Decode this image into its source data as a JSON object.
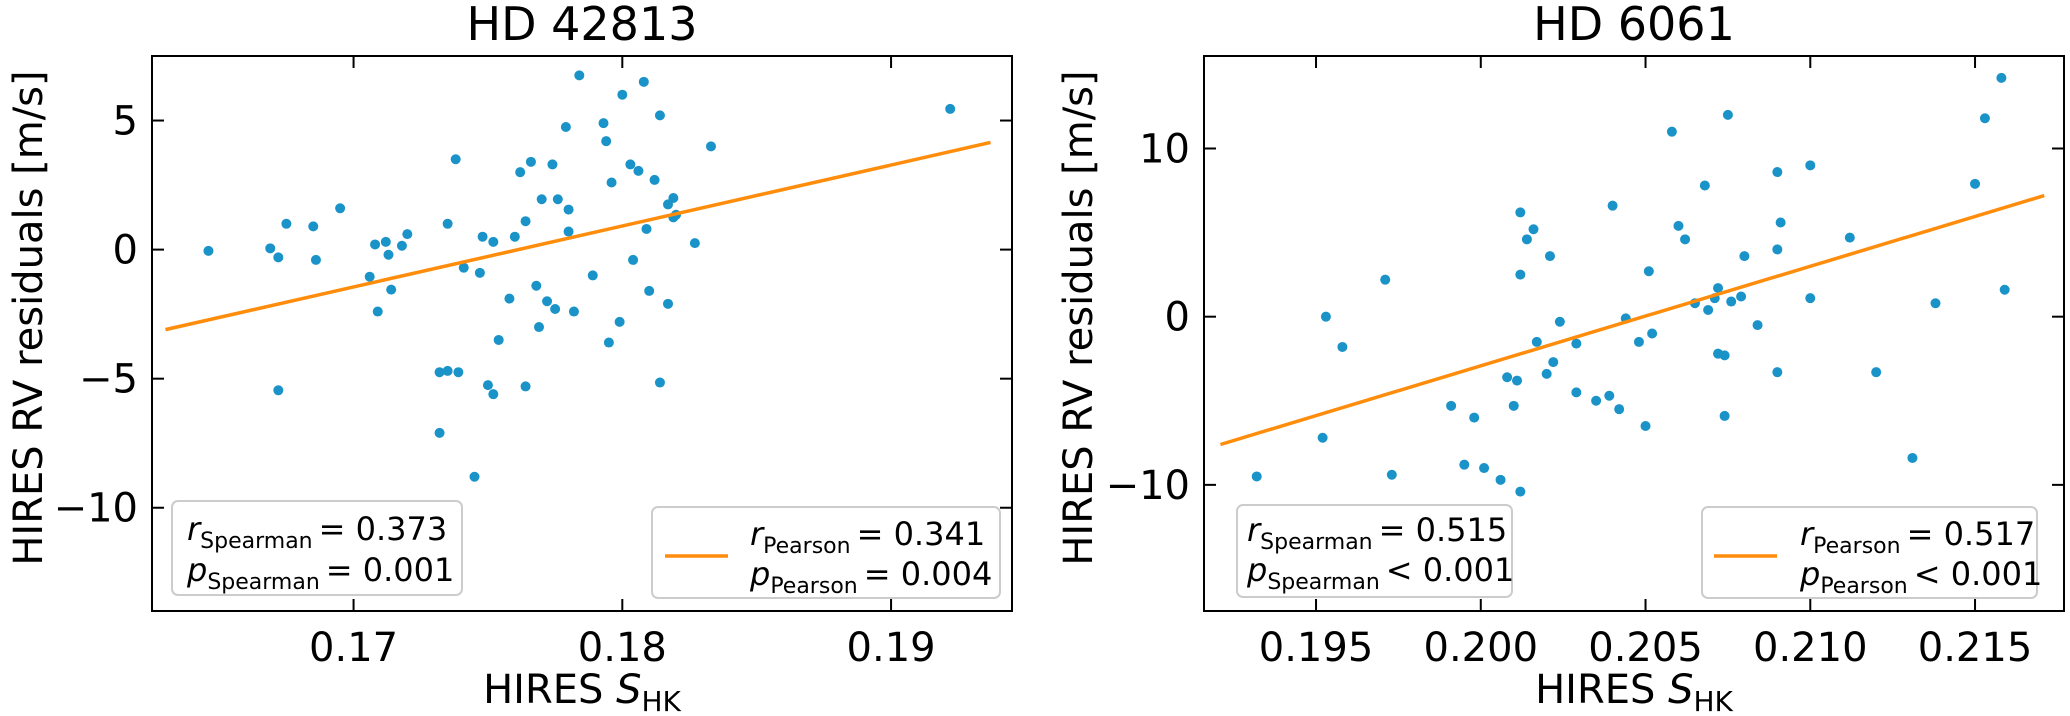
{
  "colors": {
    "points": "#1a93c8",
    "fit": "#ff8c0a"
  },
  "chart_data": [
    {
      "type": "scatter",
      "title": "HD 42813",
      "xlabel": "HIRES S_HK",
      "xlabel_main": "HIRES ",
      "xlabel_var": "S",
      "xlabel_sub": "HK",
      "ylabel": "HIRES RV residuals [m/s]",
      "xlim": [
        0.1625,
        0.1945
      ],
      "ylim": [
        -14,
        7.5
      ],
      "xticks": [
        0.17,
        0.18,
        0.19
      ],
      "xtick_labels": [
        "0.17",
        "0.18",
        "0.19"
      ],
      "yticks": [
        -10,
        -5,
        0,
        5
      ],
      "ytick_labels": [
        "−10",
        "−5",
        "0",
        "5"
      ],
      "fit_line": {
        "x": [
          0.163,
          0.1937
        ],
        "y": [
          -3.1,
          4.15
        ]
      },
      "legend": {
        "spearman": {
          "r_sym": "r",
          "r_sub": "Spearman",
          "r_val": "= 0.373",
          "p_sym": "p",
          "p_sub": "Spearman",
          "p_val": "= 0.001"
        },
        "pearson": {
          "r_sym": "r",
          "r_sub": "Pearson",
          "r_val": "=  0.341",
          "p_sym": "p",
          "p_sub": "Pearson",
          "p_val": "= 0.004"
        }
      },
      "points": [
        [
          0.1646,
          -0.05
        ],
        [
          0.1669,
          0.05
        ],
        [
          0.1672,
          -0.3
        ],
        [
          0.1675,
          1.0
        ],
        [
          0.1672,
          -5.45
        ],
        [
          0.1685,
          0.9
        ],
        [
          0.1686,
          -0.4
        ],
        [
          0.1695,
          1.6
        ],
        [
          0.1706,
          -1.05
        ],
        [
          0.1708,
          0.2
        ],
        [
          0.1709,
          -2.4
        ],
        [
          0.1712,
          0.3
        ],
        [
          0.1713,
          -0.2
        ],
        [
          0.1714,
          -1.55
        ],
        [
          0.1718,
          0.15
        ],
        [
          0.172,
          0.6
        ],
        [
          0.1732,
          -4.75
        ],
        [
          0.1732,
          -7.1
        ],
        [
          0.1735,
          -4.7
        ],
        [
          0.1735,
          1.0
        ],
        [
          0.1738,
          3.5
        ],
        [
          0.1739,
          -4.75
        ],
        [
          0.1741,
          -0.7
        ],
        [
          0.1745,
          -8.8
        ],
        [
          0.1747,
          -0.9
        ],
        [
          0.1748,
          0.5
        ],
        [
          0.175,
          -5.25
        ],
        [
          0.1752,
          -5.6
        ],
        [
          0.1752,
          0.3
        ],
        [
          0.1754,
          -3.5
        ],
        [
          0.1758,
          -1.9
        ],
        [
          0.176,
          0.5
        ],
        [
          0.1762,
          3.0
        ],
        [
          0.1764,
          1.1
        ],
        [
          0.1764,
          -5.3
        ],
        [
          0.1766,
          3.4
        ],
        [
          0.1768,
          -1.4
        ],
        [
          0.1769,
          -3.0
        ],
        [
          0.177,
          1.95
        ],
        [
          0.1772,
          -2.0
        ],
        [
          0.1774,
          3.3
        ],
        [
          0.1775,
          -2.3
        ],
        [
          0.1776,
          1.95
        ],
        [
          0.1779,
          4.75
        ],
        [
          0.178,
          1.55
        ],
        [
          0.178,
          0.7
        ],
        [
          0.1782,
          -2.4
        ],
        [
          0.1784,
          6.75
        ],
        [
          0.1789,
          -1.0
        ],
        [
          0.1793,
          4.9
        ],
        [
          0.1794,
          4.2
        ],
        [
          0.1795,
          -3.6
        ],
        [
          0.1796,
          2.6
        ],
        [
          0.1799,
          -2.8
        ],
        [
          0.18,
          6.0
        ],
        [
          0.1803,
          3.3
        ],
        [
          0.1804,
          -0.4
        ],
        [
          0.1806,
          3.05
        ],
        [
          0.1808,
          6.5
        ],
        [
          0.1809,
          0.8
        ],
        [
          0.181,
          -1.6
        ],
        [
          0.1812,
          2.7
        ],
        [
          0.1814,
          5.2
        ],
        [
          0.1814,
          -5.15
        ],
        [
          0.1817,
          1.75
        ],
        [
          0.1817,
          -2.1
        ],
        [
          0.1819,
          2.0
        ],
        [
          0.1819,
          1.25
        ],
        [
          0.182,
          1.35
        ],
        [
          0.1827,
          0.25
        ],
        [
          0.1833,
          4.0
        ],
        [
          0.1922,
          5.45
        ]
      ]
    },
    {
      "type": "scatter",
      "title": "HD 6061",
      "xlabel": "HIRES S_HK",
      "xlabel_main": "HIRES ",
      "xlabel_var": "S",
      "xlabel_sub": "HK",
      "ylabel": "HIRES RV residuals [m/s]",
      "xlim": [
        0.1916,
        0.2177
      ],
      "ylim": [
        -17.5,
        15.5
      ],
      "xticks": [
        0.195,
        0.2,
        0.205,
        0.21,
        0.215
      ],
      "xtick_labels": [
        "0.195",
        "0.200",
        "0.205",
        "0.210",
        "0.215"
      ],
      "yticks": [
        -10,
        0,
        10
      ],
      "ytick_labels": [
        "−10",
        "0",
        "10"
      ],
      "fit_line": {
        "x": [
          0.1921,
          0.2171
        ],
        "y": [
          -7.6,
          7.2
        ]
      },
      "legend": {
        "spearman": {
          "r_sym": "r",
          "r_sub": "Spearman",
          "r_val": "= 0.515",
          "p_sym": "p",
          "p_sub": "Spearman",
          "p_val": "< 0.001"
        },
        "pearson": {
          "r_sym": "r",
          "r_sub": "Pearson",
          "r_val": "=  0.517",
          "p_sym": "p",
          "p_sub": "Pearson",
          "p_val": "< 0.001"
        }
      },
      "points": [
        [
          0.1932,
          -9.5
        ],
        [
          0.1952,
          -7.2
        ],
        [
          0.1953,
          0.0
        ],
        [
          0.1958,
          -1.8
        ],
        [
          0.1971,
          2.2
        ],
        [
          0.1973,
          -9.4
        ],
        [
          0.1991,
          -5.3
        ],
        [
          0.1995,
          -8.8
        ],
        [
          0.1998,
          -6.0
        ],
        [
          0.2001,
          -9.0
        ],
        [
          0.2006,
          -9.7
        ],
        [
          0.2008,
          -3.6
        ],
        [
          0.201,
          -5.3
        ],
        [
          0.2011,
          -3.8
        ],
        [
          0.2012,
          2.5
        ],
        [
          0.2012,
          6.2
        ],
        [
          0.2012,
          -10.4
        ],
        [
          0.2014,
          4.6
        ],
        [
          0.2016,
          5.2
        ],
        [
          0.2017,
          -1.5
        ],
        [
          0.202,
          -3.4
        ],
        [
          0.2021,
          3.6
        ],
        [
          0.2022,
          -2.7
        ],
        [
          0.2024,
          -0.3
        ],
        [
          0.2029,
          -1.6
        ],
        [
          0.2029,
          -4.5
        ],
        [
          0.2035,
          -5.0
        ],
        [
          0.2039,
          -4.7
        ],
        [
          0.204,
          6.6
        ],
        [
          0.2042,
          -5.5
        ],
        [
          0.2044,
          -0.1
        ],
        [
          0.2048,
          -1.5
        ],
        [
          0.205,
          -6.5
        ],
        [
          0.2051,
          2.7
        ],
        [
          0.2052,
          -1.0
        ],
        [
          0.2058,
          11.0
        ],
        [
          0.206,
          5.4
        ],
        [
          0.2062,
          4.6
        ],
        [
          0.2065,
          0.8
        ],
        [
          0.2068,
          7.8
        ],
        [
          0.2069,
          0.4
        ],
        [
          0.2071,
          1.1
        ],
        [
          0.2072,
          1.7
        ],
        [
          0.2072,
          -2.2
        ],
        [
          0.2074,
          -2.3
        ],
        [
          0.2074,
          -5.9
        ],
        [
          0.2075,
          12.0
        ],
        [
          0.2076,
          0.9
        ],
        [
          0.2079,
          1.2
        ],
        [
          0.208,
          3.6
        ],
        [
          0.2084,
          -0.5
        ],
        [
          0.209,
          -3.3
        ],
        [
          0.209,
          4.0
        ],
        [
          0.209,
          8.6
        ],
        [
          0.2091,
          5.6
        ],
        [
          0.21,
          9.0
        ],
        [
          0.21,
          1.1
        ],
        [
          0.2112,
          4.7
        ],
        [
          0.212,
          -3.3
        ],
        [
          0.2131,
          -8.4
        ],
        [
          0.2138,
          0.8
        ],
        [
          0.215,
          7.9
        ],
        [
          0.2153,
          11.8
        ],
        [
          0.2158,
          14.2
        ],
        [
          0.2159,
          1.6
        ]
      ]
    }
  ]
}
